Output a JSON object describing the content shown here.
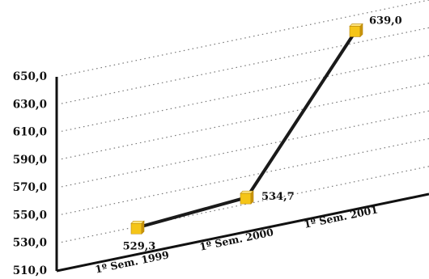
{
  "chart_data": {
    "type": "line",
    "categories": [
      "1º Sem. 1999",
      "1º Sem. 2000",
      "1º Sem. 2001"
    ],
    "values": [
      529.3,
      534.7,
      639.0
    ],
    "data_labels": [
      "529,3",
      "534,7",
      "639,0"
    ],
    "y_ticks": [
      "510,0",
      "530,0",
      "550,0",
      "570,0",
      "590,0",
      "610,0",
      "630,0",
      "650,0"
    ],
    "ylim": [
      510,
      650
    ],
    "title": "",
    "xlabel": "",
    "ylabel": "",
    "grid": true,
    "legend": "none",
    "colors": {
      "line": "#1a1a1a",
      "marker": "#f5c518",
      "grid": "#777777"
    }
  }
}
